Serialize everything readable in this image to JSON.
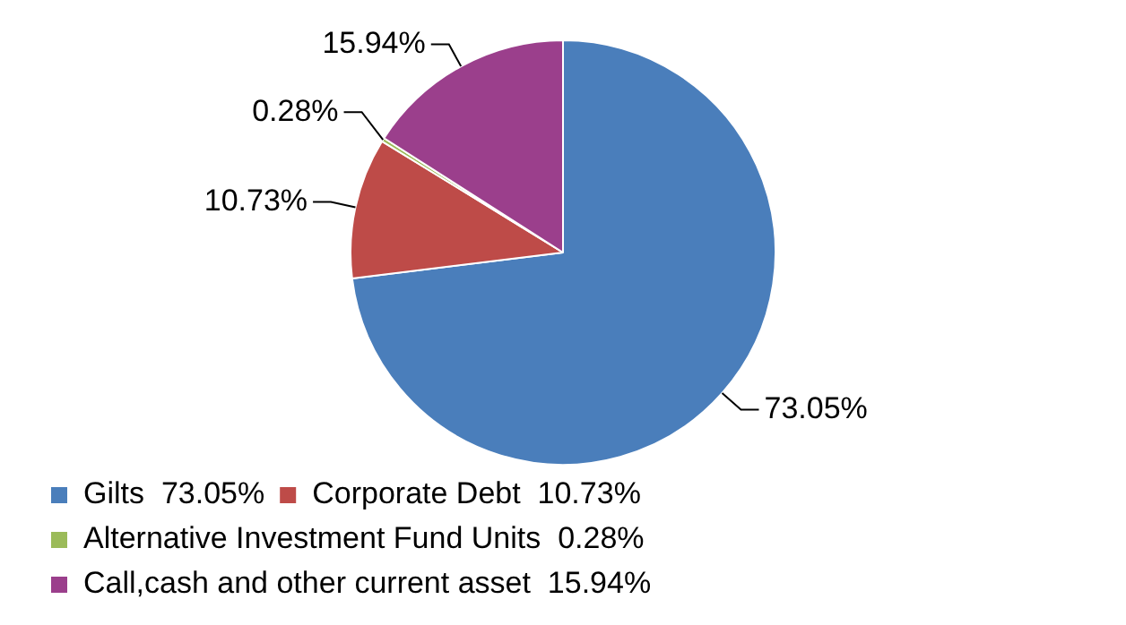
{
  "chart_data": {
    "type": "pie",
    "categories": [
      "Gilts  73.05%",
      "Corporate Debt  10.73%",
      "Alternative Investment Fund Units  0.28%",
      "Call,cash and other current asset  15.94%"
    ],
    "values": [
      73.05,
      10.73,
      0.28,
      15.94
    ],
    "colors": [
      "#4a7ebb",
      "#be4b48",
      "#9bbb59",
      "#9b3f8c"
    ],
    "value_labels": [
      "73.05%",
      "10.73%",
      "0.28%",
      "15.94%"
    ],
    "legend": "bottom"
  }
}
